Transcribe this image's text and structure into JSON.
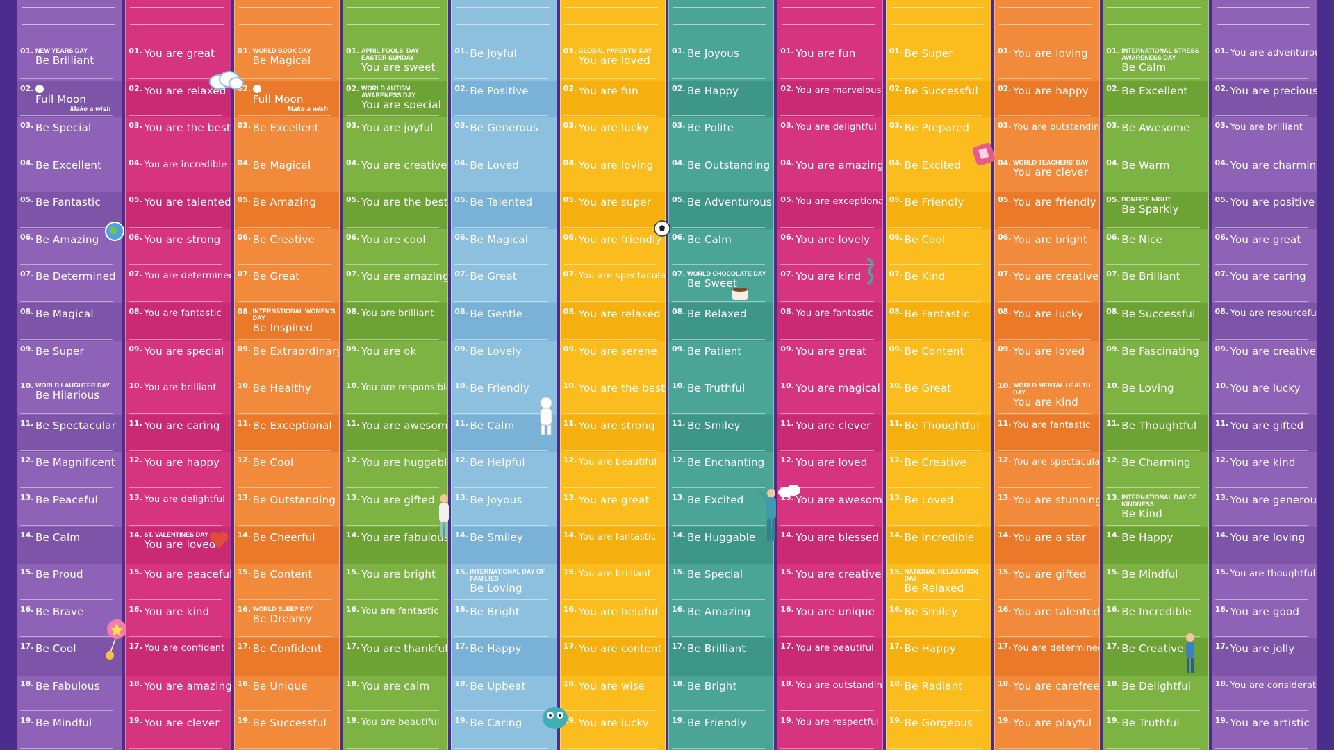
{
  "columns": [
    {
      "color": "#8e62b7",
      "alt": "#7d54a8",
      "rows": [
        {
          "n": "01.",
          "t": "Be Brilliant",
          "note": "New Years Day"
        },
        {
          "n": "02.",
          "t": "Full Moon",
          "note": ""
        },
        {
          "n": "03.",
          "t": "Be Special"
        },
        {
          "n": "04.",
          "t": "Be Excellent"
        },
        {
          "n": "05.",
          "t": "Be Fantastic"
        },
        {
          "n": "06.",
          "t": "Be Amazing"
        },
        {
          "n": "07.",
          "t": "Be Determined"
        },
        {
          "n": "08.",
          "t": "Be Magical"
        },
        {
          "n": "09.",
          "t": "Be Super"
        },
        {
          "n": "10.",
          "t": "Be Hilarious",
          "note": "World Laughter Day"
        },
        {
          "n": "11.",
          "t": "Be Spectacular"
        },
        {
          "n": "12.",
          "t": "Be Magnificent"
        },
        {
          "n": "13.",
          "t": "Be Peaceful"
        },
        {
          "n": "14.",
          "t": "Be Calm"
        },
        {
          "n": "15.",
          "t": "Be Proud"
        },
        {
          "n": "16.",
          "t": "Be Brave"
        },
        {
          "n": "17.",
          "t": "Be Cool"
        },
        {
          "n": "18.",
          "t": "Be Fabulous"
        },
        {
          "n": "19.",
          "t": "Be Mindful"
        }
      ]
    },
    {
      "color": "#d7347f",
      "alt": "#c92a73",
      "rows": [
        {
          "n": "01.",
          "t": "You are great"
        },
        {
          "n": "02.",
          "t": "You are relaxed"
        },
        {
          "n": "03.",
          "t": "You are the best"
        },
        {
          "n": "04.",
          "t": "You are incredible"
        },
        {
          "n": "05.",
          "t": "You are talented"
        },
        {
          "n": "06.",
          "t": "You are strong"
        },
        {
          "n": "07.",
          "t": "You are determined"
        },
        {
          "n": "08.",
          "t": "You are fantastic"
        },
        {
          "n": "09.",
          "t": "You are special"
        },
        {
          "n": "10.",
          "t": "You are brilliant"
        },
        {
          "n": "11.",
          "t": "You are caring"
        },
        {
          "n": "12.",
          "t": "You are happy"
        },
        {
          "n": "13.",
          "t": "You are delightful"
        },
        {
          "n": "14.",
          "t": "You are loved",
          "note": "St. Valentines Day"
        },
        {
          "n": "15.",
          "t": "You are peaceful"
        },
        {
          "n": "16.",
          "t": "You are kind"
        },
        {
          "n": "17.",
          "t": "You are confident"
        },
        {
          "n": "18.",
          "t": "You are amazing"
        },
        {
          "n": "19.",
          "t": "You are clever"
        }
      ]
    },
    {
      "color": "#f28a3c",
      "alt": "#ea7a2a",
      "rows": [
        {
          "n": "01.",
          "t": "Be Magical",
          "note": "World Book Day"
        },
        {
          "n": "02.",
          "t": "Full Moon",
          "note": ""
        },
        {
          "n": "03.",
          "t": "Be Excellent"
        },
        {
          "n": "04.",
          "t": "Be Magical"
        },
        {
          "n": "05.",
          "t": "Be Amazing"
        },
        {
          "n": "06.",
          "t": "Be Creative"
        },
        {
          "n": "07.",
          "t": "Be Great"
        },
        {
          "n": "08.",
          "t": "Be Inspired",
          "note": "International Women's Day"
        },
        {
          "n": "09.",
          "t": "Be Extraordinary"
        },
        {
          "n": "10.",
          "t": "Be Healthy"
        },
        {
          "n": "11.",
          "t": "Be Exceptional"
        },
        {
          "n": "12.",
          "t": "Be Cool"
        },
        {
          "n": "13.",
          "t": "Be Outstanding"
        },
        {
          "n": "14.",
          "t": "Be Cheerful"
        },
        {
          "n": "15.",
          "t": "Be Content"
        },
        {
          "n": "16.",
          "t": "Be Dreamy",
          "note": "World Sleep Day"
        },
        {
          "n": "17.",
          "t": "Be Confident"
        },
        {
          "n": "18.",
          "t": "Be Unique"
        },
        {
          "n": "19.",
          "t": "Be Successful"
        }
      ]
    },
    {
      "color": "#7cb342",
      "alt": "#6da235",
      "rows": [
        {
          "n": "01.",
          "t": "You are sweet",
          "note": "April Fools' Day Easter Sunday"
        },
        {
          "n": "02.",
          "t": "You are special",
          "note": "World Autism Awareness Day"
        },
        {
          "n": "03.",
          "t": "You are joyful"
        },
        {
          "n": "04.",
          "t": "You are creative"
        },
        {
          "n": "05.",
          "t": "You are the best"
        },
        {
          "n": "06.",
          "t": "You are cool"
        },
        {
          "n": "07.",
          "t": "You are amazing"
        },
        {
          "n": "08.",
          "t": "You are brilliant"
        },
        {
          "n": "09.",
          "t": "You are ok"
        },
        {
          "n": "10.",
          "t": "You are responsible"
        },
        {
          "n": "11.",
          "t": "You are awesome"
        },
        {
          "n": "12.",
          "t": "You are huggable"
        },
        {
          "n": "13.",
          "t": "You are gifted"
        },
        {
          "n": "14.",
          "t": "You are fabulous"
        },
        {
          "n": "15.",
          "t": "You are bright"
        },
        {
          "n": "16.",
          "t": "You are fantastic"
        },
        {
          "n": "17.",
          "t": "You are thankful"
        },
        {
          "n": "18.",
          "t": "You are calm"
        },
        {
          "n": "19.",
          "t": "You are beautiful"
        }
      ]
    },
    {
      "color": "#8cc0de",
      "alt": "#79b2d6",
      "rows": [
        {
          "n": "01.",
          "t": "Be Joyful"
        },
        {
          "n": "02.",
          "t": "Be Positive"
        },
        {
          "n": "03.",
          "t": "Be Generous"
        },
        {
          "n": "04.",
          "t": "Be Loved"
        },
        {
          "n": "05.",
          "t": "Be Talented"
        },
        {
          "n": "06.",
          "t": "Be Magical"
        },
        {
          "n": "07.",
          "t": "Be Great"
        },
        {
          "n": "08.",
          "t": "Be Gentle"
        },
        {
          "n": "09.",
          "t": "Be Lovely"
        },
        {
          "n": "10.",
          "t": "Be Friendly"
        },
        {
          "n": "11.",
          "t": "Be Calm"
        },
        {
          "n": "12.",
          "t": "Be Helpful"
        },
        {
          "n": "13.",
          "t": "Be Joyous"
        },
        {
          "n": "14.",
          "t": "Be Smiley"
        },
        {
          "n": "15.",
          "t": "Be Loving",
          "note": "International Day of Families"
        },
        {
          "n": "16.",
          "t": "Be Bright"
        },
        {
          "n": "17.",
          "t": "Be Happy"
        },
        {
          "n": "18.",
          "t": "Be Upbeat"
        },
        {
          "n": "19.",
          "t": "Be Caring"
        }
      ]
    },
    {
      "color": "#fbbd1e",
      "alt": "#f5b010",
      "rows": [
        {
          "n": "01.",
          "t": "You are loved",
          "note": "Global Parents' Day"
        },
        {
          "n": "02.",
          "t": "You are fun"
        },
        {
          "n": "03.",
          "t": "You are lucky"
        },
        {
          "n": "04.",
          "t": "You are loving"
        },
        {
          "n": "05.",
          "t": "You are super"
        },
        {
          "n": "06.",
          "t": "You are friendly"
        },
        {
          "n": "07.",
          "t": "You are spectacular"
        },
        {
          "n": "08.",
          "t": "You are relaxed"
        },
        {
          "n": "09.",
          "t": "You are serene"
        },
        {
          "n": "10.",
          "t": "You are the best"
        },
        {
          "n": "11.",
          "t": "You are strong"
        },
        {
          "n": "12.",
          "t": "You are beautiful"
        },
        {
          "n": "13.",
          "t": "You are great"
        },
        {
          "n": "14.",
          "t": "You are fantastic"
        },
        {
          "n": "15.",
          "t": "You are brilliant"
        },
        {
          "n": "16.",
          "t": "You are helpful"
        },
        {
          "n": "17.",
          "t": "You are content"
        },
        {
          "n": "18.",
          "t": "You are wise"
        },
        {
          "n": "19.",
          "t": "You are lucky"
        }
      ]
    },
    {
      "color": "#4aa596",
      "alt": "#3d9687",
      "rows": [
        {
          "n": "01.",
          "t": "Be Joyous"
        },
        {
          "n": "02.",
          "t": "Be Happy"
        },
        {
          "n": "03.",
          "t": "Be Polite"
        },
        {
          "n": "04.",
          "t": "Be Outstanding"
        },
        {
          "n": "05.",
          "t": "Be Adventurous"
        },
        {
          "n": "06.",
          "t": "Be Calm"
        },
        {
          "n": "07.",
          "t": "Be Sweet",
          "note": "World Chocolate Day"
        },
        {
          "n": "08.",
          "t": "Be Relaxed"
        },
        {
          "n": "09.",
          "t": "Be Patient"
        },
        {
          "n": "10.",
          "t": "Be Truthful"
        },
        {
          "n": "11.",
          "t": "Be Smiley"
        },
        {
          "n": "12.",
          "t": "Be Enchanting"
        },
        {
          "n": "13.",
          "t": "Be Excited"
        },
        {
          "n": "14.",
          "t": "Be Huggable"
        },
        {
          "n": "15.",
          "t": "Be Special"
        },
        {
          "n": "16.",
          "t": "Be Amazing"
        },
        {
          "n": "17.",
          "t": "Be Brilliant"
        },
        {
          "n": "18.",
          "t": "Be Bright"
        },
        {
          "n": "19.",
          "t": "Be Friendly"
        }
      ]
    },
    {
      "color": "#d7347f",
      "alt": "#c92a73",
      "rows": [
        {
          "n": "01.",
          "t": "You are fun"
        },
        {
          "n": "02.",
          "t": "You are marvelous"
        },
        {
          "n": "03.",
          "t": "You are delightful"
        },
        {
          "n": "04.",
          "t": "You are amazing"
        },
        {
          "n": "05.",
          "t": "You are exceptional"
        },
        {
          "n": "06.",
          "t": "You are lovely"
        },
        {
          "n": "07.",
          "t": "You are kind"
        },
        {
          "n": "08.",
          "t": "You are fantastic"
        },
        {
          "n": "09.",
          "t": "You are great"
        },
        {
          "n": "10.",
          "t": "You are magical"
        },
        {
          "n": "11.",
          "t": "You are clever"
        },
        {
          "n": "12.",
          "t": "You are loved"
        },
        {
          "n": "13.",
          "t": "You are awesome"
        },
        {
          "n": "14.",
          "t": "You are blessed"
        },
        {
          "n": "15.",
          "t": "You are creative"
        },
        {
          "n": "16.",
          "t": "You are unique"
        },
        {
          "n": "17.",
          "t": "You are beautiful"
        },
        {
          "n": "18.",
          "t": "You are outstanding"
        },
        {
          "n": "19.",
          "t": "You are respectful"
        }
      ]
    },
    {
      "color": "#fbbd1e",
      "alt": "#f5b010",
      "rows": [
        {
          "n": "01.",
          "t": "Be Super"
        },
        {
          "n": "02.",
          "t": "Be Successful"
        },
        {
          "n": "03.",
          "t": "Be Prepared"
        },
        {
          "n": "04.",
          "t": "Be Excited"
        },
        {
          "n": "05.",
          "t": "Be Friendly"
        },
        {
          "n": "06.",
          "t": "Be Cool"
        },
        {
          "n": "07.",
          "t": "Be Kind"
        },
        {
          "n": "08.",
          "t": "Be Fantastic"
        },
        {
          "n": "09.",
          "t": "Be Content"
        },
        {
          "n": "10.",
          "t": "Be Great"
        },
        {
          "n": "11.",
          "t": "Be Thoughtful"
        },
        {
          "n": "12.",
          "t": "Be Creative"
        },
        {
          "n": "13.",
          "t": "Be Loved"
        },
        {
          "n": "14.",
          "t": "Be Incredible"
        },
        {
          "n": "15.",
          "t": "Be Relaxed",
          "note": "National Relaxation Day"
        },
        {
          "n": "16.",
          "t": "Be Smiley"
        },
        {
          "n": "17.",
          "t": "Be Happy"
        },
        {
          "n": "18.",
          "t": "Be Radiant"
        },
        {
          "n": "19.",
          "t": "Be Gorgeous"
        }
      ]
    },
    {
      "color": "#f28a3c",
      "alt": "#ea7a2a",
      "rows": [
        {
          "n": "01.",
          "t": "You are loving"
        },
        {
          "n": "02.",
          "t": "You are happy"
        },
        {
          "n": "03.",
          "t": "You are outstanding"
        },
        {
          "n": "04.",
          "t": "You are clever",
          "note": "World Teachers' Day"
        },
        {
          "n": "05.",
          "t": "You are friendly"
        },
        {
          "n": "06.",
          "t": "You are bright"
        },
        {
          "n": "07.",
          "t": "You are creative"
        },
        {
          "n": "08.",
          "t": "You are lucky"
        },
        {
          "n": "09.",
          "t": "You are loved"
        },
        {
          "n": "10.",
          "t": "You are kind",
          "note": "World Mental Health Day"
        },
        {
          "n": "11.",
          "t": "You are fantastic"
        },
        {
          "n": "12.",
          "t": "You are spectacular"
        },
        {
          "n": "13.",
          "t": "You are stunning"
        },
        {
          "n": "14.",
          "t": "You are a star"
        },
        {
          "n": "15.",
          "t": "You are gifted"
        },
        {
          "n": "16.",
          "t": "You are talented"
        },
        {
          "n": "17.",
          "t": "You are determined"
        },
        {
          "n": "18.",
          "t": "You are carefree"
        },
        {
          "n": "19.",
          "t": "You are playful"
        }
      ]
    },
    {
      "color": "#7cb342",
      "alt": "#6da235",
      "rows": [
        {
          "n": "01.",
          "t": "Be Calm",
          "note": "International Stress Awareness Day"
        },
        {
          "n": "02.",
          "t": "Be Excellent"
        },
        {
          "n": "03.",
          "t": "Be Awesome"
        },
        {
          "n": "04.",
          "t": "Be Warm"
        },
        {
          "n": "05.",
          "t": "Be Sparkly",
          "note": "Bonfire Night"
        },
        {
          "n": "06.",
          "t": "Be Nice"
        },
        {
          "n": "07.",
          "t": "Be Brilliant"
        },
        {
          "n": "08.",
          "t": "Be Successful"
        },
        {
          "n": "09.",
          "t": "Be Fascinating"
        },
        {
          "n": "10.",
          "t": "Be Loving"
        },
        {
          "n": "11.",
          "t": "Be Thoughtful"
        },
        {
          "n": "12.",
          "t": "Be Charming"
        },
        {
          "n": "13.",
          "t": "Be Kind",
          "note": "International Day of Kindness"
        },
        {
          "n": "14.",
          "t": "Be Happy"
        },
        {
          "n": "15.",
          "t": "Be Mindful"
        },
        {
          "n": "16.",
          "t": "Be Incredible"
        },
        {
          "n": "17.",
          "t": "Be Creative"
        },
        {
          "n": "18.",
          "t": "Be Delightful"
        },
        {
          "n": "19.",
          "t": "Be Truthful"
        }
      ]
    },
    {
      "color": "#8e62b7",
      "alt": "#7d54a8",
      "rows": [
        {
          "n": "01.",
          "t": "You are adventurous"
        },
        {
          "n": "02.",
          "t": "You are precious"
        },
        {
          "n": "03.",
          "t": "You are brilliant"
        },
        {
          "n": "04.",
          "t": "You are charming"
        },
        {
          "n": "05.",
          "t": "You are positive"
        },
        {
          "n": "06.",
          "t": "You are great"
        },
        {
          "n": "07.",
          "t": "You are caring"
        },
        {
          "n": "08.",
          "t": "You are resourceful"
        },
        {
          "n": "09.",
          "t": "You are creative"
        },
        {
          "n": "10.",
          "t": "You are lucky"
        },
        {
          "n": "11.",
          "t": "You are gifted"
        },
        {
          "n": "12.",
          "t": "You are kind"
        },
        {
          "n": "13.",
          "t": "You are generous"
        },
        {
          "n": "14.",
          "t": "You are loving"
        },
        {
          "n": "15.",
          "t": "You are thoughtful"
        },
        {
          "n": "16.",
          "t": "You are good"
        },
        {
          "n": "17.",
          "t": "You are jolly"
        },
        {
          "n": "18.",
          "t": "You are considerate"
        },
        {
          "n": "19.",
          "t": "You are artistic"
        }
      ]
    }
  ],
  "extras": {
    "make_a_wish": "Make a wish"
  }
}
